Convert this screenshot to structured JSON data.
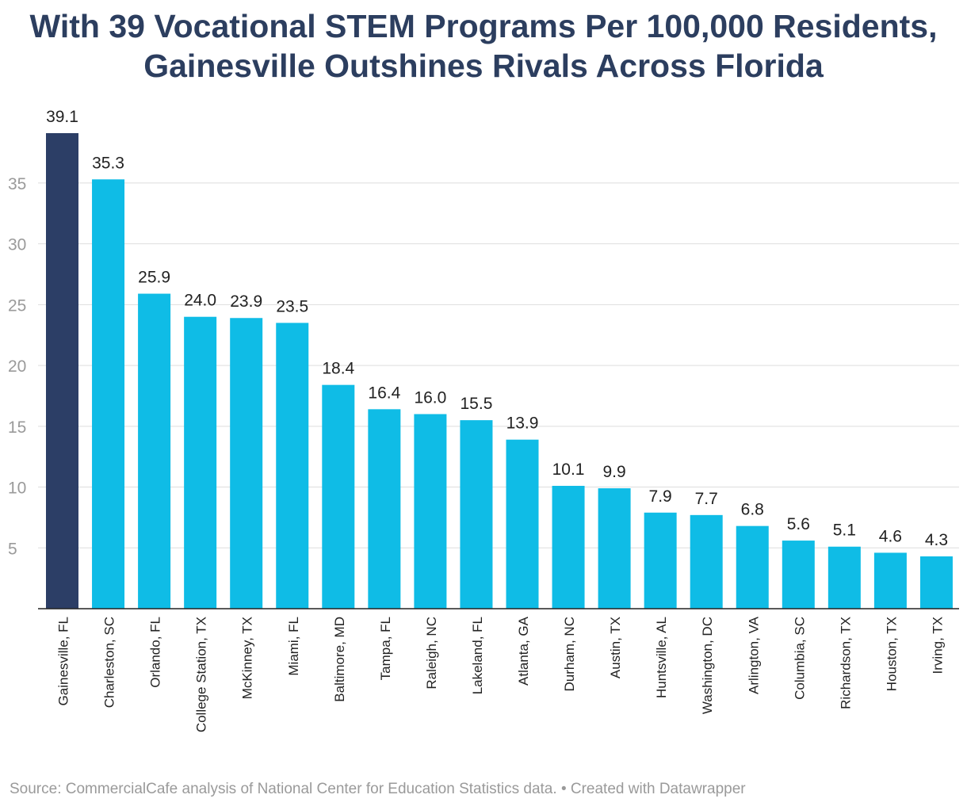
{
  "title_line1": "With 39 Vocational STEM Programs Per 100,000 Residents,",
  "title_line2": "Gainesville Outshines Rivals Across Florida",
  "footer": {
    "source": "Source: CommercialCafe analysis of National Center for Education Statistics data.",
    "separator": "•",
    "credit": "Created with Datawrapper"
  },
  "colors": {
    "highlight": "#2c3e66",
    "bar": "#0fbce6",
    "grid": "#dedede",
    "axis": "#222222",
    "tick_label": "#9a9a9a",
    "value_label": "#222222",
    "category_label": "#222222"
  },
  "chart_data": {
    "type": "bar",
    "title": "With 39 Vocational STEM Programs Per 100,000 Residents, Gainesville Outshines Rivals Across Florida",
    "xlabel": "",
    "ylabel": "",
    "ylim": [
      0,
      39.1
    ],
    "yticks": [
      5,
      10,
      15,
      20,
      25,
      30,
      35
    ],
    "grid": true,
    "highlight_index": 0,
    "categories": [
      "Gainesville, FL",
      "Charleston, SC",
      "Orlando, FL",
      "College Station, TX",
      "McKinney, TX",
      "Miami, FL",
      "Baltimore, MD",
      "Tampa, FL",
      "Raleigh, NC",
      "Lakeland, FL",
      "Atlanta, GA",
      "Durham, NC",
      "Austin, TX",
      "Huntsville, AL",
      "Washington, DC",
      "Arlington, VA",
      "Columbia, SC",
      "Richardson, TX",
      "Houston, TX",
      "Irving, TX"
    ],
    "values": [
      39.1,
      35.3,
      25.9,
      24.0,
      23.9,
      23.5,
      18.4,
      16.4,
      16.0,
      15.5,
      13.9,
      10.1,
      9.9,
      7.9,
      7.7,
      6.8,
      5.6,
      5.1,
      4.6,
      4.3
    ],
    "labels": [
      "39.1",
      "35.3",
      "25.9",
      "24.0",
      "23.9",
      "23.5",
      "18.4",
      "16.4",
      "16.0",
      "15.5",
      "13.9",
      "10.1",
      "9.9",
      "7.9",
      "7.7",
      "6.8",
      "5.6",
      "5.1",
      "4.6",
      "4.3"
    ]
  }
}
